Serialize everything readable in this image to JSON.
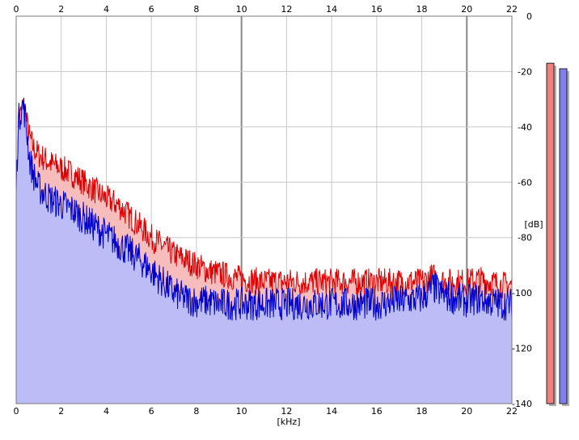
{
  "chart_data": {
    "type": "area",
    "xlabel": "[kHz]",
    "ylabel": "[dB]",
    "xlim": [
      0,
      22
    ],
    "ylim": [
      -140,
      0
    ],
    "xticks": [
      0,
      2,
      4,
      6,
      8,
      10,
      12,
      14,
      16,
      18,
      20,
      22
    ],
    "yticks": [
      0,
      -20,
      -40,
      -60,
      -80,
      -100,
      -120,
      -140
    ],
    "xtick_labels": [
      "0",
      "2",
      "4",
      "6",
      "8",
      "10",
      "12",
      "14",
      "16",
      "18",
      "20",
      "22"
    ],
    "ytick_labels": [
      "0",
      "-20",
      "-40",
      "-60",
      "-80",
      "-100",
      "-120",
      "-140"
    ],
    "grid": true,
    "series": [
      {
        "color": "#dd0000",
        "fill": "#f7bcbc",
        "x": [
          0,
          0.1,
          0.2,
          0.3,
          0.4,
          0.6,
          0.8,
          1,
          1.5,
          2,
          2.5,
          3,
          3.5,
          4,
          4.5,
          5,
          5.5,
          6,
          6.5,
          7,
          7.5,
          8,
          8.5,
          9,
          9.5,
          10,
          11,
          12,
          13,
          14,
          15,
          16,
          17,
          18,
          18.5,
          19,
          19.5,
          20,
          20.5,
          21,
          21.5,
          22
        ],
        "y": [
          -68,
          -40,
          -35,
          -33,
          -35,
          -44,
          -48,
          -50,
          -53,
          -55,
          -57,
          -60,
          -63,
          -66,
          -68,
          -72,
          -76,
          -80,
          -83,
          -86,
          -88,
          -90,
          -92,
          -93,
          -94,
          -95,
          -96,
          -96,
          -96,
          -96,
          -96,
          -96,
          -96,
          -96,
          -94,
          -96,
          -96,
          -96,
          -95,
          -96,
          -97,
          -97
        ]
      },
      {
        "color": "#0000cc",
        "fill": "#bcbcf7",
        "x": [
          0,
          0.1,
          0.2,
          0.3,
          0.4,
          0.6,
          0.8,
          1,
          1.5,
          2,
          2.5,
          3,
          3.5,
          4,
          4.5,
          5,
          5.5,
          6,
          6.5,
          7,
          7.5,
          8,
          8.5,
          9,
          9.5,
          10,
          11,
          12,
          13,
          14,
          15,
          16,
          17,
          18,
          18.5,
          19,
          19.5,
          20,
          20.5,
          21,
          21.5,
          22
        ],
        "y": [
          -62,
          -38,
          -34,
          -32,
          -36,
          -52,
          -58,
          -62,
          -66,
          -68,
          -70,
          -73,
          -76,
          -79,
          -82,
          -85,
          -88,
          -92,
          -96,
          -100,
          -102,
          -103,
          -103,
          -104,
          -104,
          -104,
          -104,
          -104,
          -104,
          -104,
          -104,
          -104,
          -103,
          -102,
          -98,
          -101,
          -102,
          -103,
          -102,
          -103,
          -104,
          -104
        ]
      }
    ],
    "meters": [
      {
        "level": -17,
        "color": "#f08080"
      },
      {
        "level": -19,
        "color": "#8080f0"
      }
    ]
  }
}
